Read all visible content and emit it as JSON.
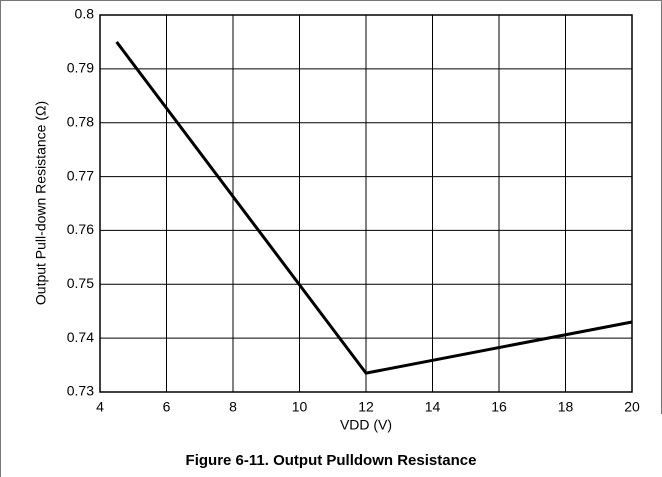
{
  "chart_data": {
    "type": "line",
    "caption": "Figure 6-11. Output Pulldown Resistance",
    "xlabel": "VDD (V)",
    "ylabel": "Output Pull-down Resistance (Ω)",
    "x": [
      4.5,
      12,
      20
    ],
    "values": [
      0.795,
      0.7335,
      0.743
    ],
    "color": "#000000",
    "xlim": [
      4,
      20
    ],
    "xticks": [
      4,
      6,
      8,
      10,
      12,
      14,
      16,
      18,
      20
    ],
    "ylim": [
      0.73,
      0.8
    ],
    "yticks": [
      0.73,
      0.74,
      0.75,
      0.76,
      0.77,
      0.78,
      0.79,
      0.8
    ],
    "grid": true
  }
}
